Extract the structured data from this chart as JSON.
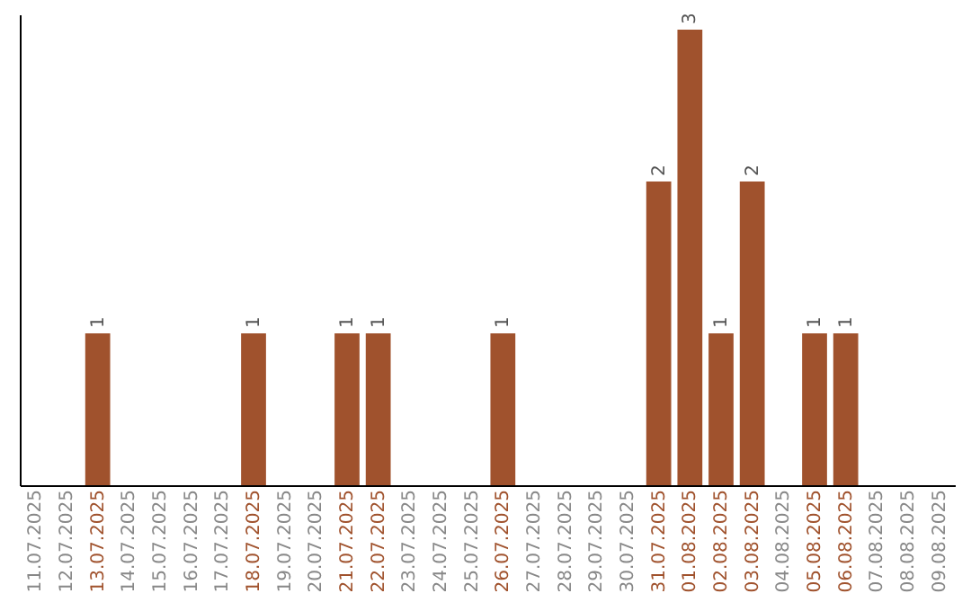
{
  "chart_data": {
    "type": "bar",
    "categories": [
      "11.07.2025",
      "12.07.2025",
      "13.07.2025",
      "14.07.2025",
      "15.07.2025",
      "16.07.2025",
      "17.07.2025",
      "18.07.2025",
      "19.07.2025",
      "20.07.2025",
      "21.07.2025",
      "22.07.2025",
      "23.07.2025",
      "24.07.2025",
      "25.07.2025",
      "26.07.2025",
      "27.07.2025",
      "28.07.2025",
      "29.07.2025",
      "30.07.2025",
      "31.07.2025",
      "01.08.2025",
      "02.08.2025",
      "03.08.2025",
      "04.08.2025",
      "05.08.2025",
      "06.08.2025",
      "07.08.2025",
      "08.08.2025",
      "09.08.2025"
    ],
    "values": [
      0,
      0,
      1,
      0,
      0,
      0,
      0,
      1,
      0,
      0,
      1,
      1,
      0,
      0,
      0,
      1,
      0,
      0,
      0,
      0,
      2,
      3,
      1,
      2,
      0,
      1,
      1,
      0,
      0,
      0
    ],
    "color": "#a0522d",
    "ylim": [
      0,
      3.1
    ],
    "tick_labels": "x",
    "value_labels": [
      null,
      null,
      "1",
      null,
      null,
      null,
      null,
      "1",
      null,
      null,
      "1",
      "1",
      null,
      null,
      null,
      "1",
      null,
      null,
      null,
      null,
      "2",
      "3",
      "1",
      "2",
      null,
      "1",
      "1",
      null,
      null,
      null
    ],
    "grid": false
  }
}
